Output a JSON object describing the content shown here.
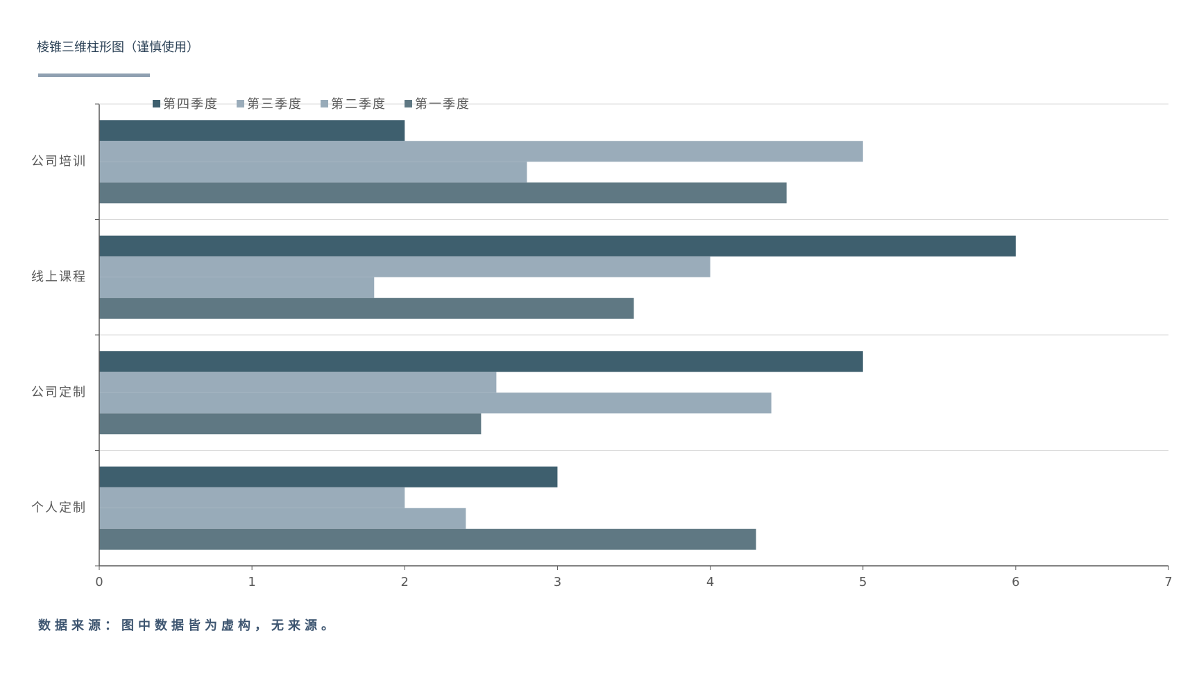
{
  "chart_data": {
    "type": "barh",
    "title": "棱锥三维柱形图（谨慎使用）",
    "categories": [
      "公司培训",
      "线上课程",
      "公司定制",
      "个人定制"
    ],
    "series": [
      {
        "name": "第四季度",
        "color": "#3e5f6e",
        "values": [
          2,
          6,
          5,
          3
        ]
      },
      {
        "name": "第三季度",
        "color": "#9aacba",
        "values": [
          5,
          4,
          2.6,
          2
        ]
      },
      {
        "name": "第二季度",
        "color": "#98abb9",
        "values": [
          2.8,
          1.8,
          4.4,
          2.4
        ]
      },
      {
        "name": "第一季度",
        "color": "#5f7883",
        "values": [
          4.5,
          3.5,
          2.5,
          4.3
        ]
      }
    ],
    "xlim": [
      0,
      7
    ],
    "xticks": [
      0,
      1,
      2,
      3,
      4,
      5,
      6,
      7
    ],
    "grid": true,
    "legend": "top",
    "source": "数据来源：图中数据皆为虚构，无来源。"
  }
}
